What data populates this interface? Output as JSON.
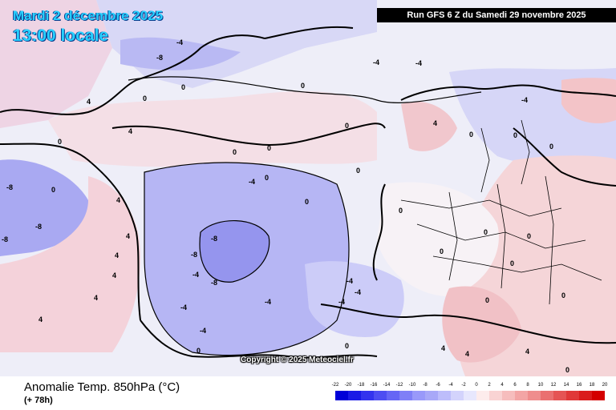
{
  "header": {
    "date": "Mardi 2 décembre 2025",
    "local_time": "13:00 locale",
    "run_banner": "Run GFS 6 Z du Samedi 29 novembre 2025"
  },
  "map": {
    "copyright": "Copyright © 2025 Meteociel.fr",
    "contour_labels": [
      "-8",
      "-8",
      "-8",
      "-8",
      "-8",
      "-8",
      "-8",
      "-4",
      "-4",
      "-4",
      "-4",
      "-4",
      "-4",
      "-4",
      "-4",
      "-4",
      "-4",
      "-4",
      "-4",
      "0",
      "0",
      "0",
      "0",
      "0",
      "0",
      "0",
      "0",
      "0",
      "0",
      "0",
      "0",
      "0",
      "0",
      "0",
      "0",
      "0",
      "0",
      "0",
      "0",
      "0",
      "0",
      "0",
      "0",
      "4",
      "4",
      "4",
      "4",
      "4",
      "4",
      "4",
      "4",
      "4",
      "4",
      "4",
      "4"
    ]
  },
  "footer": {
    "product_title": "Anomalie Temp. 850hPa (°C)",
    "lead_time": "(+ 78h)"
  },
  "legend": {
    "ticks": [
      "-22",
      "-20",
      "-18",
      "-16",
      "-14",
      "-12",
      "-10",
      "-8",
      "-6",
      "-4",
      "-2",
      "0",
      "2",
      "4",
      "6",
      "8",
      "10",
      "12",
      "14",
      "16",
      "18",
      "20"
    ],
    "colors": [
      "#0000d8",
      "#1a1ae6",
      "#3333ee",
      "#4d4df2",
      "#6666f5",
      "#7f7ff7",
      "#9999fa",
      "#a8a8f8",
      "#bdbdfb",
      "#d3d3fc",
      "#e7e7fd",
      "#fdecec",
      "#f9d3d3",
      "#f6bdbd",
      "#f3a5a5",
      "#ef8d8d",
      "#ea7070",
      "#e55454",
      "#e03838",
      "#da1c1c",
      "#d40000"
    ]
  },
  "colors": {
    "cold_core": "#8f8ff2",
    "cold": "#b7b7f5",
    "cool": "#d5d5fa",
    "neutral": "#f2f2f7",
    "warm": "#f7d6d6",
    "warmer": "#f2b9b9",
    "land_line": "#000000"
  }
}
